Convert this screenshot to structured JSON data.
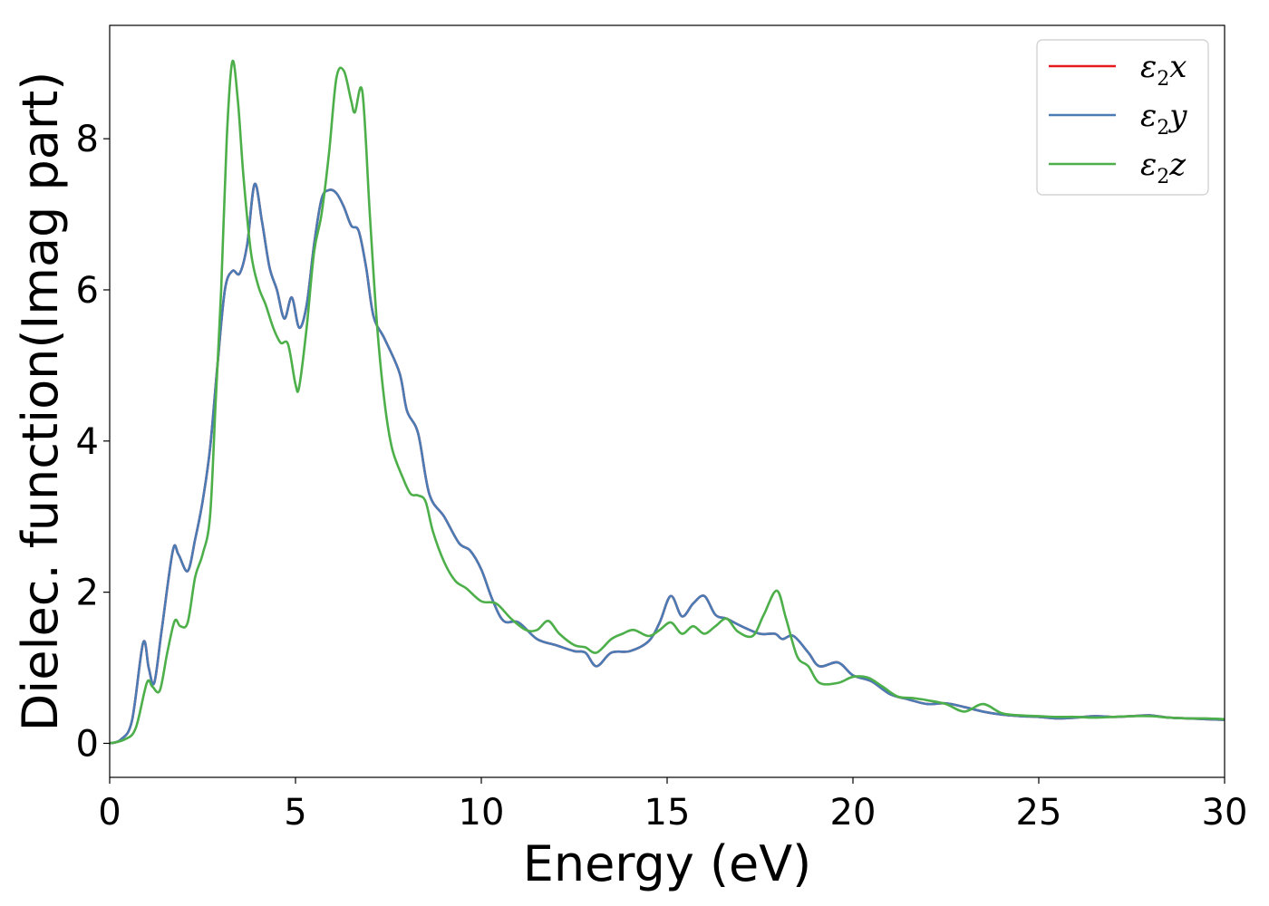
{
  "chart_data": {
    "type": "line",
    "title": "",
    "xlabel": "Energy (eV)",
    "ylabel": "Dielec. function(Imag part)",
    "xlim": [
      0,
      30
    ],
    "ylim": [
      -0.45,
      9.5
    ],
    "xticks": [
      0,
      5,
      10,
      15,
      20,
      25,
      30
    ],
    "yticks": [
      0,
      2,
      4,
      6,
      8
    ],
    "xtick_labels": [
      "0",
      "5",
      "10",
      "15",
      "20",
      "25",
      "30"
    ],
    "ytick_labels": [
      "0",
      "2",
      "4",
      "6",
      "8"
    ],
    "grid": false,
    "legend_position": "top-right",
    "series": [
      {
        "name": "ε2x",
        "label_base": "ε",
        "label_sub": "2",
        "label_tail": "x",
        "color": "#e41a1c",
        "points": [
          [
            0,
            0
          ],
          [
            0.3,
            0.05
          ],
          [
            0.6,
            0.3
          ],
          [
            0.9,
            1.33
          ],
          [
            1.05,
            1.0
          ],
          [
            1.2,
            0.8
          ],
          [
            1.4,
            1.5
          ],
          [
            1.7,
            2.55
          ],
          [
            1.85,
            2.5
          ],
          [
            2.1,
            2.28
          ],
          [
            2.3,
            2.7
          ],
          [
            2.5,
            3.2
          ],
          [
            2.7,
            3.9
          ],
          [
            2.9,
            5.0
          ],
          [
            3.1,
            6.0
          ],
          [
            3.3,
            6.25
          ],
          [
            3.5,
            6.22
          ],
          [
            3.7,
            6.6
          ],
          [
            3.9,
            7.4
          ],
          [
            4.1,
            6.9
          ],
          [
            4.3,
            6.3
          ],
          [
            4.5,
            6.0
          ],
          [
            4.7,
            5.62
          ],
          [
            4.9,
            5.9
          ],
          [
            5.1,
            5.5
          ],
          [
            5.3,
            5.8
          ],
          [
            5.5,
            6.6
          ],
          [
            5.7,
            7.2
          ],
          [
            5.9,
            7.32
          ],
          [
            6.1,
            7.28
          ],
          [
            6.3,
            7.1
          ],
          [
            6.5,
            6.85
          ],
          [
            6.7,
            6.78
          ],
          [
            6.9,
            6.3
          ],
          [
            7.1,
            5.65
          ],
          [
            7.4,
            5.35
          ],
          [
            7.8,
            4.9
          ],
          [
            8.0,
            4.4
          ],
          [
            8.3,
            4.1
          ],
          [
            8.6,
            3.3
          ],
          [
            9.0,
            3.0
          ],
          [
            9.4,
            2.65
          ],
          [
            9.7,
            2.55
          ],
          [
            10.0,
            2.3
          ],
          [
            10.3,
            1.9
          ],
          [
            10.6,
            1.62
          ],
          [
            11.0,
            1.6
          ],
          [
            11.5,
            1.38
          ],
          [
            12.0,
            1.3
          ],
          [
            12.5,
            1.22
          ],
          [
            12.8,
            1.2
          ],
          [
            13.1,
            1.02
          ],
          [
            13.5,
            1.2
          ],
          [
            14.0,
            1.22
          ],
          [
            14.5,
            1.35
          ],
          [
            14.8,
            1.6
          ],
          [
            15.1,
            1.95
          ],
          [
            15.4,
            1.68
          ],
          [
            15.7,
            1.85
          ],
          [
            16.0,
            1.95
          ],
          [
            16.3,
            1.7
          ],
          [
            16.6,
            1.65
          ],
          [
            17.0,
            1.55
          ],
          [
            17.5,
            1.45
          ],
          [
            17.9,
            1.45
          ],
          [
            18.1,
            1.38
          ],
          [
            18.4,
            1.42
          ],
          [
            18.8,
            1.2
          ],
          [
            19.1,
            1.02
          ],
          [
            19.6,
            1.07
          ],
          [
            20.0,
            0.9
          ],
          [
            20.5,
            0.82
          ],
          [
            21.0,
            0.65
          ],
          [
            21.5,
            0.58
          ],
          [
            22.0,
            0.52
          ],
          [
            22.5,
            0.53
          ],
          [
            23.0,
            0.48
          ],
          [
            23.5,
            0.42
          ],
          [
            24.0,
            0.38
          ],
          [
            24.5,
            0.36
          ],
          [
            25.0,
            0.35
          ],
          [
            25.5,
            0.33
          ],
          [
            26.0,
            0.34
          ],
          [
            26.5,
            0.36
          ],
          [
            27.0,
            0.35
          ],
          [
            27.5,
            0.36
          ],
          [
            28.0,
            0.37
          ],
          [
            28.5,
            0.34
          ],
          [
            29.0,
            0.33
          ],
          [
            29.5,
            0.32
          ],
          [
            30.0,
            0.31
          ]
        ]
      },
      {
        "name": "ε2y",
        "label_base": "ε",
        "label_sub": "2",
        "label_tail": "y",
        "color": "#4a7bb5",
        "points": [
          [
            0,
            0
          ],
          [
            0.3,
            0.05
          ],
          [
            0.6,
            0.3
          ],
          [
            0.9,
            1.33
          ],
          [
            1.05,
            1.0
          ],
          [
            1.2,
            0.8
          ],
          [
            1.4,
            1.5
          ],
          [
            1.7,
            2.55
          ],
          [
            1.85,
            2.5
          ],
          [
            2.1,
            2.28
          ],
          [
            2.3,
            2.7
          ],
          [
            2.5,
            3.2
          ],
          [
            2.7,
            3.9
          ],
          [
            2.9,
            5.0
          ],
          [
            3.1,
            6.0
          ],
          [
            3.3,
            6.25
          ],
          [
            3.5,
            6.22
          ],
          [
            3.7,
            6.6
          ],
          [
            3.9,
            7.4
          ],
          [
            4.1,
            6.9
          ],
          [
            4.3,
            6.3
          ],
          [
            4.5,
            6.0
          ],
          [
            4.7,
            5.62
          ],
          [
            4.9,
            5.9
          ],
          [
            5.1,
            5.5
          ],
          [
            5.3,
            5.8
          ],
          [
            5.5,
            6.6
          ],
          [
            5.7,
            7.2
          ],
          [
            5.9,
            7.32
          ],
          [
            6.1,
            7.28
          ],
          [
            6.3,
            7.1
          ],
          [
            6.5,
            6.85
          ],
          [
            6.7,
            6.78
          ],
          [
            6.9,
            6.3
          ],
          [
            7.1,
            5.65
          ],
          [
            7.4,
            5.35
          ],
          [
            7.8,
            4.9
          ],
          [
            8.0,
            4.4
          ],
          [
            8.3,
            4.1
          ],
          [
            8.6,
            3.3
          ],
          [
            9.0,
            3.0
          ],
          [
            9.4,
            2.65
          ],
          [
            9.7,
            2.55
          ],
          [
            10.0,
            2.3
          ],
          [
            10.3,
            1.9
          ],
          [
            10.6,
            1.62
          ],
          [
            11.0,
            1.6
          ],
          [
            11.5,
            1.38
          ],
          [
            12.0,
            1.3
          ],
          [
            12.5,
            1.22
          ],
          [
            12.8,
            1.2
          ],
          [
            13.1,
            1.02
          ],
          [
            13.5,
            1.2
          ],
          [
            14.0,
            1.22
          ],
          [
            14.5,
            1.35
          ],
          [
            14.8,
            1.6
          ],
          [
            15.1,
            1.95
          ],
          [
            15.4,
            1.68
          ],
          [
            15.7,
            1.85
          ],
          [
            16.0,
            1.95
          ],
          [
            16.3,
            1.7
          ],
          [
            16.6,
            1.65
          ],
          [
            17.0,
            1.55
          ],
          [
            17.5,
            1.45
          ],
          [
            17.9,
            1.45
          ],
          [
            18.1,
            1.38
          ],
          [
            18.4,
            1.42
          ],
          [
            18.8,
            1.2
          ],
          [
            19.1,
            1.02
          ],
          [
            19.6,
            1.07
          ],
          [
            20.0,
            0.9
          ],
          [
            20.5,
            0.82
          ],
          [
            21.0,
            0.65
          ],
          [
            21.5,
            0.58
          ],
          [
            22.0,
            0.52
          ],
          [
            22.5,
            0.53
          ],
          [
            23.0,
            0.48
          ],
          [
            23.5,
            0.42
          ],
          [
            24.0,
            0.38
          ],
          [
            24.5,
            0.36
          ],
          [
            25.0,
            0.35
          ],
          [
            25.5,
            0.33
          ],
          [
            26.0,
            0.34
          ],
          [
            26.5,
            0.36
          ],
          [
            27.0,
            0.35
          ],
          [
            27.5,
            0.36
          ],
          [
            28.0,
            0.37
          ],
          [
            28.5,
            0.34
          ],
          [
            29.0,
            0.33
          ],
          [
            29.5,
            0.32
          ],
          [
            30.0,
            0.31
          ]
        ]
      },
      {
        "name": "ε2z",
        "label_base": "ε",
        "label_sub": "2",
        "label_tail": "z",
        "color": "#4daf4a",
        "points": [
          [
            0,
            0
          ],
          [
            0.4,
            0.05
          ],
          [
            0.7,
            0.2
          ],
          [
            1.0,
            0.8
          ],
          [
            1.15,
            0.75
          ],
          [
            1.35,
            0.7
          ],
          [
            1.55,
            1.2
          ],
          [
            1.75,
            1.62
          ],
          [
            1.9,
            1.55
          ],
          [
            2.1,
            1.6
          ],
          [
            2.3,
            2.2
          ],
          [
            2.5,
            2.5
          ],
          [
            2.7,
            3.0
          ],
          [
            2.85,
            4.5
          ],
          [
            3.0,
            6.0
          ],
          [
            3.15,
            8.0
          ],
          [
            3.3,
            9.02
          ],
          [
            3.45,
            8.5
          ],
          [
            3.6,
            7.5
          ],
          [
            3.8,
            6.5
          ],
          [
            4.0,
            6.05
          ],
          [
            4.2,
            5.8
          ],
          [
            4.4,
            5.5
          ],
          [
            4.6,
            5.3
          ],
          [
            4.8,
            5.28
          ],
          [
            5.0,
            4.75
          ],
          [
            5.1,
            4.72
          ],
          [
            5.3,
            5.5
          ],
          [
            5.5,
            6.5
          ],
          [
            5.7,
            7.0
          ],
          [
            5.9,
            7.8
          ],
          [
            6.1,
            8.8
          ],
          [
            6.3,
            8.9
          ],
          [
            6.5,
            8.5
          ],
          [
            6.6,
            8.35
          ],
          [
            6.8,
            8.62
          ],
          [
            7.0,
            7.0
          ],
          [
            7.2,
            5.5
          ],
          [
            7.4,
            4.5
          ],
          [
            7.6,
            3.9
          ],
          [
            7.9,
            3.5
          ],
          [
            8.1,
            3.3
          ],
          [
            8.3,
            3.28
          ],
          [
            8.5,
            3.2
          ],
          [
            8.7,
            2.8
          ],
          [
            9.0,
            2.4
          ],
          [
            9.3,
            2.15
          ],
          [
            9.6,
            2.05
          ],
          [
            10.0,
            1.88
          ],
          [
            10.4,
            1.85
          ],
          [
            10.8,
            1.65
          ],
          [
            11.2,
            1.5
          ],
          [
            11.5,
            1.5
          ],
          [
            11.8,
            1.62
          ],
          [
            12.1,
            1.45
          ],
          [
            12.5,
            1.3
          ],
          [
            12.8,
            1.27
          ],
          [
            13.1,
            1.2
          ],
          [
            13.5,
            1.38
          ],
          [
            13.8,
            1.45
          ],
          [
            14.1,
            1.5
          ],
          [
            14.5,
            1.42
          ],
          [
            14.8,
            1.5
          ],
          [
            15.1,
            1.6
          ],
          [
            15.4,
            1.45
          ],
          [
            15.7,
            1.55
          ],
          [
            16.0,
            1.45
          ],
          [
            16.3,
            1.55
          ],
          [
            16.6,
            1.65
          ],
          [
            16.9,
            1.48
          ],
          [
            17.3,
            1.42
          ],
          [
            17.6,
            1.7
          ],
          [
            17.95,
            2.02
          ],
          [
            18.2,
            1.65
          ],
          [
            18.5,
            1.15
          ],
          [
            18.8,
            1.02
          ],
          [
            19.1,
            0.8
          ],
          [
            19.6,
            0.8
          ],
          [
            20.0,
            0.88
          ],
          [
            20.4,
            0.87
          ],
          [
            20.8,
            0.75
          ],
          [
            21.2,
            0.62
          ],
          [
            21.6,
            0.6
          ],
          [
            22.0,
            0.57
          ],
          [
            22.5,
            0.52
          ],
          [
            23.0,
            0.42
          ],
          [
            23.5,
            0.52
          ],
          [
            24.0,
            0.4
          ],
          [
            24.5,
            0.37
          ],
          [
            25.0,
            0.36
          ],
          [
            25.5,
            0.35
          ],
          [
            26.0,
            0.35
          ],
          [
            26.5,
            0.34
          ],
          [
            27.0,
            0.35
          ],
          [
            27.5,
            0.36
          ],
          [
            28.0,
            0.36
          ],
          [
            28.5,
            0.34
          ],
          [
            29.0,
            0.33
          ],
          [
            29.5,
            0.33
          ],
          [
            30.0,
            0.32
          ]
        ]
      }
    ]
  }
}
